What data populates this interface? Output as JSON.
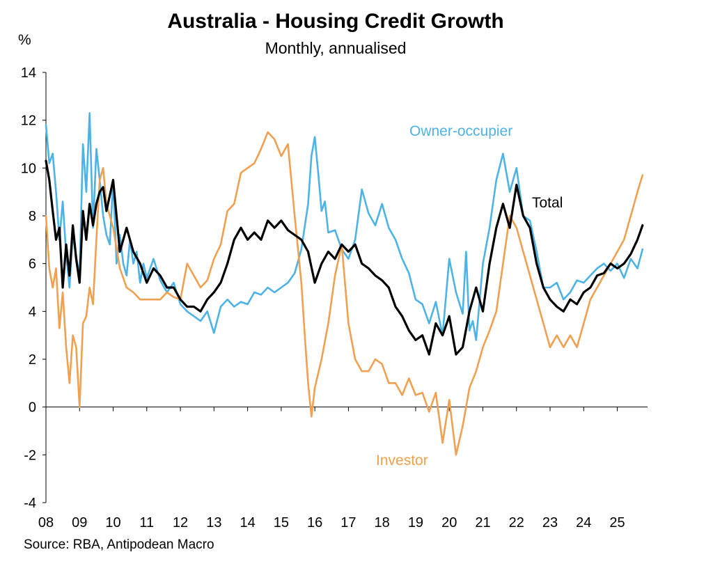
{
  "chart_data": {
    "type": "line",
    "title": "Australia - Housing Credit Growth",
    "subtitle": "Monthly, annualised",
    "ylabel": "%",
    "xlabel": "",
    "ylim": [
      -4,
      14
    ],
    "xlim": [
      2008,
      2025.9
    ],
    "yticks": [
      -4,
      -2,
      0,
      2,
      4,
      6,
      8,
      10,
      12,
      14
    ],
    "xtick_labels": [
      "08",
      "09",
      "10",
      "11",
      "12",
      "13",
      "14",
      "15",
      "16",
      "17",
      "18",
      "19",
      "20",
      "21",
      "22",
      "23",
      "24",
      "25"
    ],
    "colors": {
      "owner": "#4db3e6",
      "investor": "#f0a050",
      "total": "#000000"
    },
    "series": [
      {
        "name": "Owner-occupier",
        "label": "Owner-occupier",
        "color": "#4db3e6",
        "x": [
          2008.0,
          2008.1,
          2008.2,
          2008.3,
          2008.4,
          2008.5,
          2008.6,
          2008.7,
          2008.8,
          2008.9,
          2009.0,
          2009.1,
          2009.2,
          2009.3,
          2009.4,
          2009.5,
          2009.6,
          2009.7,
          2009.8,
          2009.9,
          2010.0,
          2010.1,
          2010.2,
          2010.3,
          2010.4,
          2010.5,
          2010.6,
          2010.7,
          2010.8,
          2010.9,
          2011.0,
          2011.2,
          2011.4,
          2011.6,
          2011.8,
          2012.0,
          2012.2,
          2012.4,
          2012.6,
          2012.8,
          2013.0,
          2013.2,
          2013.4,
          2013.6,
          2013.8,
          2014.0,
          2014.2,
          2014.4,
          2014.6,
          2014.8,
          2015.0,
          2015.2,
          2015.4,
          2015.6,
          2015.8,
          2015.9,
          2016.0,
          2016.1,
          2016.2,
          2016.3,
          2016.4,
          2016.6,
          2016.8,
          2017.0,
          2017.2,
          2017.4,
          2017.6,
          2017.8,
          2018.0,
          2018.2,
          2018.4,
          2018.6,
          2018.8,
          2019.0,
          2019.2,
          2019.4,
          2019.6,
          2019.8,
          2020.0,
          2020.2,
          2020.4,
          2020.5,
          2020.6,
          2020.7,
          2020.8,
          2020.9,
          2021.0,
          2021.2,
          2021.4,
          2021.6,
          2021.8,
          2022.0,
          2022.2,
          2022.4,
          2022.6,
          2022.8,
          2023.0,
          2023.2,
          2023.4,
          2023.6,
          2023.8,
          2024.0,
          2024.2,
          2024.4,
          2024.6,
          2024.8,
          2025.0,
          2025.2,
          2025.4,
          2025.6,
          2025.75
        ],
        "y": [
          11.8,
          10.2,
          10.6,
          9.0,
          7.0,
          8.6,
          6.4,
          5.0,
          7.2,
          6.3,
          5.5,
          11.0,
          9.0,
          12.3,
          7.5,
          10.8,
          9.5,
          8.0,
          7.2,
          6.8,
          9.5,
          6.0,
          7.2,
          6.0,
          5.5,
          7.0,
          6.0,
          6.5,
          5.2,
          6.0,
          5.4,
          6.2,
          5.3,
          4.8,
          5.2,
          4.3,
          4.0,
          3.8,
          3.6,
          4.0,
          3.1,
          4.2,
          4.5,
          4.2,
          4.4,
          4.3,
          4.8,
          4.7,
          5.0,
          4.8,
          5.0,
          5.2,
          5.6,
          6.6,
          8.5,
          10.5,
          11.3,
          9.8,
          8.2,
          8.6,
          7.3,
          7.4,
          6.6,
          6.2,
          7.0,
          9.1,
          8.1,
          7.6,
          8.5,
          7.5,
          7.0,
          6.2,
          5.6,
          4.5,
          4.3,
          3.5,
          4.4,
          3.0,
          6.2,
          4.8,
          3.9,
          6.5,
          3.2,
          3.6,
          2.8,
          4.4,
          6.0,
          7.5,
          9.5,
          10.6,
          9.0,
          10.0,
          8.0,
          7.8,
          6.5,
          5.0,
          5.0,
          5.2,
          4.5,
          4.8,
          5.3,
          5.2,
          5.5,
          5.8,
          6.0,
          5.7,
          6.0,
          5.4,
          6.2,
          5.8,
          6.6
        ]
      },
      {
        "name": "Investor",
        "label": "Investor",
        "color": "#f0a050",
        "x": [
          2008.0,
          2008.1,
          2008.2,
          2008.3,
          2008.4,
          2008.5,
          2008.6,
          2008.7,
          2008.8,
          2008.9,
          2009.0,
          2009.1,
          2009.2,
          2009.3,
          2009.4,
          2009.5,
          2009.6,
          2009.7,
          2009.8,
          2010.0,
          2010.2,
          2010.4,
          2010.6,
          2010.8,
          2011.0,
          2011.2,
          2011.4,
          2011.6,
          2011.8,
          2012.0,
          2012.2,
          2012.4,
          2012.6,
          2012.8,
          2013.0,
          2013.2,
          2013.4,
          2013.6,
          2013.8,
          2014.0,
          2014.2,
          2014.4,
          2014.6,
          2014.8,
          2015.0,
          2015.2,
          2015.4,
          2015.6,
          2015.7,
          2015.8,
          2015.9,
          2016.0,
          2016.2,
          2016.4,
          2016.6,
          2016.8,
          2017.0,
          2017.2,
          2017.4,
          2017.6,
          2017.8,
          2018.0,
          2018.2,
          2018.4,
          2018.6,
          2018.8,
          2019.0,
          2019.2,
          2019.4,
          2019.6,
          2019.8,
          2020.0,
          2020.2,
          2020.4,
          2020.6,
          2020.8,
          2021.0,
          2021.2,
          2021.4,
          2021.6,
          2021.8,
          2022.0,
          2022.2,
          2022.4,
          2022.6,
          2022.8,
          2023.0,
          2023.2,
          2023.4,
          2023.6,
          2023.8,
          2024.0,
          2024.2,
          2024.4,
          2024.6,
          2024.8,
          2025.0,
          2025.2,
          2025.4,
          2025.6,
          2025.75
        ],
        "y": [
          8.0,
          5.8,
          5.0,
          5.8,
          3.3,
          4.8,
          2.5,
          1.0,
          3.0,
          2.5,
          0.0,
          3.5,
          3.8,
          5.0,
          4.3,
          7.0,
          9.5,
          10.0,
          8.5,
          7.5,
          5.8,
          5.0,
          4.8,
          4.5,
          4.5,
          4.5,
          4.5,
          4.8,
          4.6,
          4.5,
          6.0,
          5.5,
          5.0,
          5.3,
          6.2,
          6.8,
          8.2,
          8.5,
          9.8,
          10.0,
          10.2,
          10.8,
          11.5,
          11.2,
          10.5,
          11.0,
          8.0,
          5.2,
          3.0,
          1.0,
          -0.4,
          0.8,
          2.0,
          3.5,
          5.5,
          6.8,
          3.5,
          2.0,
          1.5,
          1.5,
          2.0,
          1.8,
          1.0,
          1.0,
          0.5,
          1.2,
          0.5,
          0.6,
          -0.2,
          0.6,
          -1.5,
          0.3,
          -2.0,
          -0.8,
          0.8,
          1.5,
          2.5,
          3.2,
          4.0,
          6.0,
          8.0,
          7.5,
          6.5,
          5.5,
          4.5,
          3.5,
          2.5,
          3.0,
          2.5,
          3.0,
          2.5,
          3.5,
          4.5,
          5.0,
          5.5,
          6.0,
          6.5,
          7.0,
          8.0,
          9.0,
          9.7
        ]
      },
      {
        "name": "Total",
        "label": "Total",
        "color": "#000000",
        "x": [
          2008.0,
          2008.1,
          2008.2,
          2008.3,
          2008.4,
          2008.5,
          2008.6,
          2008.7,
          2008.8,
          2008.9,
          2009.0,
          2009.1,
          2009.2,
          2009.3,
          2009.4,
          2009.5,
          2009.6,
          2009.7,
          2009.8,
          2010.0,
          2010.2,
          2010.4,
          2010.6,
          2010.8,
          2011.0,
          2011.2,
          2011.4,
          2011.6,
          2011.8,
          2012.0,
          2012.2,
          2012.4,
          2012.6,
          2012.8,
          2013.0,
          2013.2,
          2013.4,
          2013.6,
          2013.8,
          2014.0,
          2014.2,
          2014.4,
          2014.6,
          2014.8,
          2015.0,
          2015.2,
          2015.4,
          2015.6,
          2015.8,
          2016.0,
          2016.2,
          2016.4,
          2016.6,
          2016.8,
          2017.0,
          2017.2,
          2017.4,
          2017.6,
          2017.8,
          2018.0,
          2018.2,
          2018.4,
          2018.6,
          2018.8,
          2019.0,
          2019.2,
          2019.4,
          2019.6,
          2019.8,
          2020.0,
          2020.2,
          2020.4,
          2020.6,
          2020.8,
          2021.0,
          2021.2,
          2021.4,
          2021.6,
          2021.8,
          2022.0,
          2022.2,
          2022.4,
          2022.6,
          2022.8,
          2023.0,
          2023.2,
          2023.4,
          2023.6,
          2023.8,
          2024.0,
          2024.2,
          2024.4,
          2024.6,
          2024.8,
          2025.0,
          2025.2,
          2025.4,
          2025.6,
          2025.75
        ],
        "y": [
          10.3,
          9.5,
          8.2,
          7.0,
          7.5,
          5.0,
          6.8,
          5.5,
          7.6,
          6.2,
          5.2,
          8.2,
          7.0,
          8.5,
          7.6,
          8.5,
          9.0,
          9.2,
          8.2,
          9.5,
          6.5,
          7.5,
          6.5,
          6.0,
          5.2,
          5.8,
          5.5,
          5.0,
          5.0,
          4.5,
          4.2,
          4.2,
          4.0,
          4.5,
          4.8,
          5.2,
          6.0,
          7.0,
          7.5,
          7.0,
          7.3,
          7.0,
          7.8,
          7.5,
          7.8,
          7.4,
          7.2,
          7.0,
          6.5,
          5.2,
          6.0,
          6.5,
          6.2,
          6.8,
          6.5,
          6.8,
          6.0,
          5.8,
          5.5,
          5.3,
          5.0,
          4.2,
          3.8,
          3.2,
          2.8,
          3.0,
          2.2,
          3.5,
          3.0,
          3.8,
          2.2,
          2.5,
          4.0,
          5.0,
          4.0,
          6.0,
          7.5,
          8.5,
          7.5,
          9.3,
          8.0,
          7.5,
          6.0,
          5.0,
          4.5,
          4.2,
          4.0,
          4.5,
          4.3,
          4.8,
          5.0,
          5.5,
          5.6,
          6.0,
          5.8,
          6.0,
          6.4,
          7.0,
          7.6
        ]
      }
    ],
    "annotations": [
      "Owner-occupier",
      "Investor",
      "Total"
    ]
  },
  "source": "Source: RBA, Antipodean Macro"
}
